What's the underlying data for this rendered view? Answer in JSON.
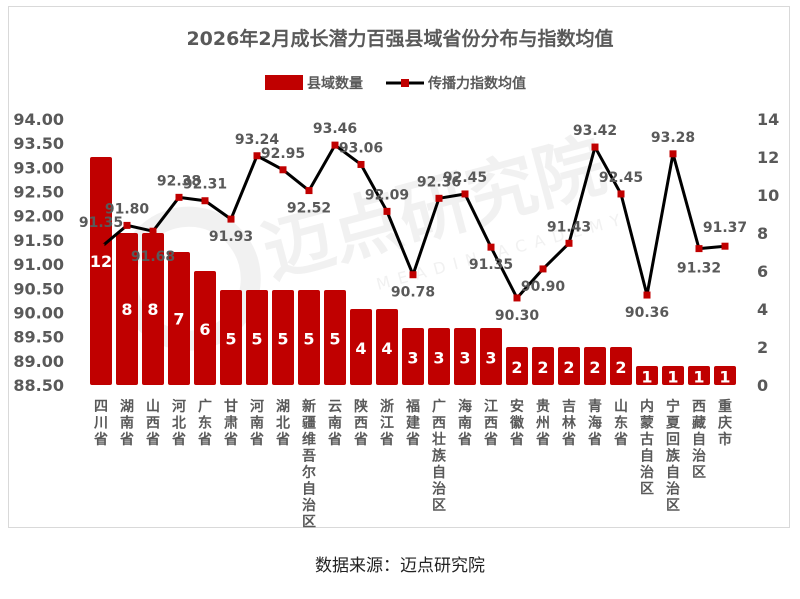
{
  "source_text": "数据来源：迈点研究院",
  "watermark": {
    "text": "迈点研究院",
    "sub_text": "MEADIN ACADEMY"
  },
  "colors": {
    "bar": "#c00000",
    "line": "#000000",
    "marker": "#c00000",
    "title": "#595959",
    "axis_text": "#595959",
    "grid": "#d9d9d9",
    "bar_label": "#ffffff",
    "watermark": "#e6e6e6"
  },
  "chart_data": {
    "type": "bar",
    "title": "2026年2月成长潜力百强县域省份分布与指数均值",
    "legend_position": "top",
    "grid": false,
    "categories": [
      "四川省",
      "湖南省",
      "山西省",
      "河北省",
      "广东省",
      "甘肃省",
      "河南省",
      "湖北省",
      "新疆维吾尔自治区",
      "云南省",
      "陕西省",
      "浙江省",
      "福建省",
      "广西壮族自治区",
      "海南省",
      "江西省",
      "安徽省",
      "贵州省",
      "吉林省",
      "青海省",
      "山东省",
      "内蒙古自治区",
      "宁夏回族自治区",
      "西藏自治区",
      "重庆市"
    ],
    "series": [
      {
        "name": "县域数量",
        "type": "bar",
        "axis": "right",
        "values": [
          12,
          8,
          8,
          7,
          6,
          5,
          5,
          5,
          5,
          5,
          4,
          4,
          3,
          3,
          3,
          3,
          2,
          2,
          2,
          2,
          2,
          1,
          1,
          1,
          1
        ]
      },
      {
        "name": "传播力指数均值",
        "type": "line",
        "axis": "left",
        "values": [
          91.35,
          91.8,
          91.68,
          92.38,
          92.31,
          91.93,
          93.24,
          92.95,
          92.52,
          93.46,
          93.06,
          92.09,
          90.78,
          92.36,
          92.45,
          91.35,
          90.3,
          90.9,
          91.43,
          93.42,
          92.45,
          90.36,
          93.28,
          91.32,
          91.37
        ],
        "labels": [
          "91.35",
          "91.80",
          "91.68",
          "92.38",
          "92.31",
          "91.93",
          "93.24",
          "92.95",
          "92.52",
          "93.46",
          "93.06",
          "92.09",
          "90.78",
          "92.36",
          "92.45",
          "91.35",
          "90.30",
          "90.90",
          "91.43",
          "93.42",
          "92.45",
          "90.36",
          "93.28",
          "91.32",
          "91.37"
        ]
      }
    ],
    "left_axis": {
      "min": 88.5,
      "max": 94.0,
      "step": 0.5,
      "ticks": [
        "88.50",
        "89.00",
        "89.50",
        "90.00",
        "90.50",
        "91.00",
        "91.50",
        "92.00",
        "92.50",
        "93.00",
        "93.50",
        "94.00"
      ]
    },
    "right_axis": {
      "min": 0,
      "max": 14,
      "step": 2,
      "ticks": [
        "0",
        "2",
        "4",
        "6",
        "8",
        "10",
        "12",
        "14"
      ]
    }
  }
}
